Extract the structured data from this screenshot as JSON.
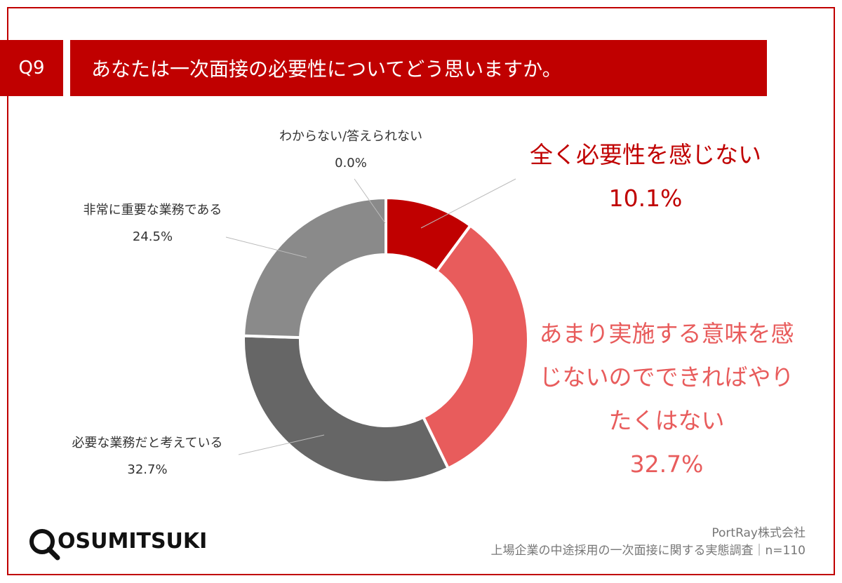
{
  "header": {
    "number": "Q9",
    "question": "あなたは一次面接の必要性についてどう思いますか。"
  },
  "chart_data": {
    "type": "donut",
    "categories": [
      "全く必要性を感じない",
      "あまり実施する意味を感じないのでできればやりたくはない",
      "必要な業務だと考えている",
      "非常に重要な業務である",
      "わからない/答えられない"
    ],
    "values": [
      10.1,
      32.7,
      32.7,
      24.5,
      0.0
    ],
    "value_labels": [
      "10.1%",
      "32.7%",
      "32.7%",
      "24.5%",
      "0.0%"
    ],
    "colors": [
      "#c00000",
      "#e85c5c",
      "#666666",
      "#8a8a8a",
      "#bfbfbf"
    ]
  },
  "footer": {
    "logo": "OSUMITSUKI",
    "company": "PortRay株式会社",
    "source": "上場企業の中途採用の一次面接に関する実態調査｜n=110"
  }
}
